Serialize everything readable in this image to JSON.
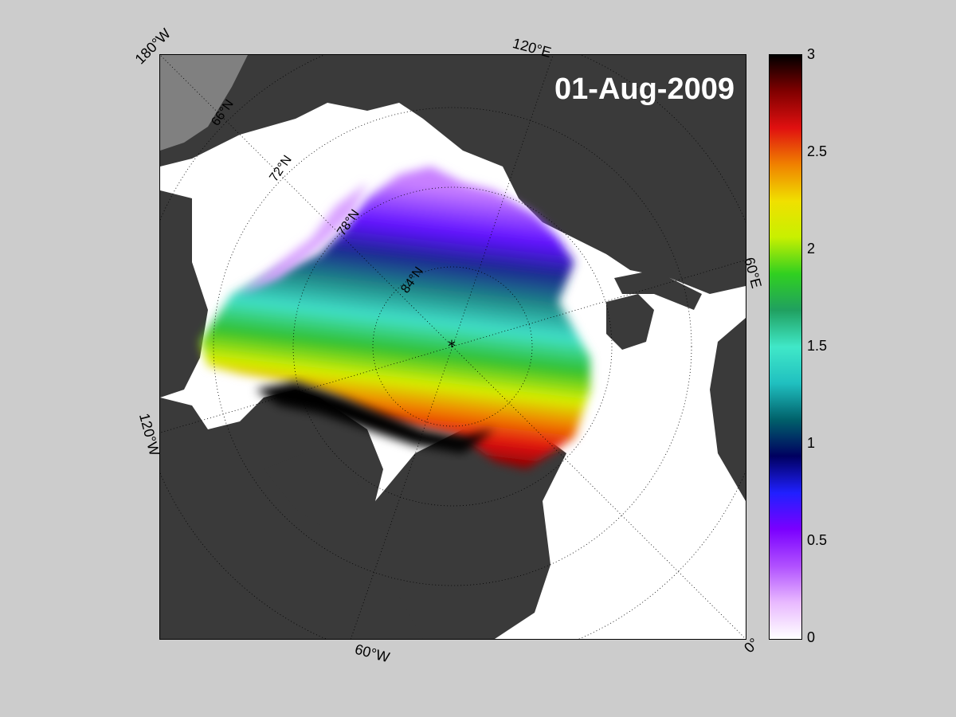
{
  "map": {
    "date": "01-Aug-2009",
    "longitude_labels": [
      "180°W",
      "120°E",
      "60°E",
      "0°",
      "60°W",
      "120°W"
    ],
    "latitude_labels": [
      "66°N",
      "72°N",
      "78°N",
      "84°N"
    ]
  },
  "colorbar": {
    "ticks": [
      "3",
      "2.5",
      "2",
      "1.5",
      "1",
      "0.5",
      "0"
    ],
    "min": 0,
    "max": 3,
    "colors": [
      "#ffffff",
      "#e8b8ff",
      "#b050ff",
      "#7a00ff",
      "#2020ff",
      "#000060",
      "#00606a",
      "#20c0c0",
      "#40e8c8",
      "#20a060",
      "#30d020",
      "#c8f000",
      "#f0e000",
      "#f08000",
      "#e01010",
      "#800000",
      "#000000"
    ]
  },
  "colors": {
    "background": "#cccccc",
    "land": "#3a3a3a",
    "land_outer": "#808080",
    "ocean": "#ffffff"
  }
}
